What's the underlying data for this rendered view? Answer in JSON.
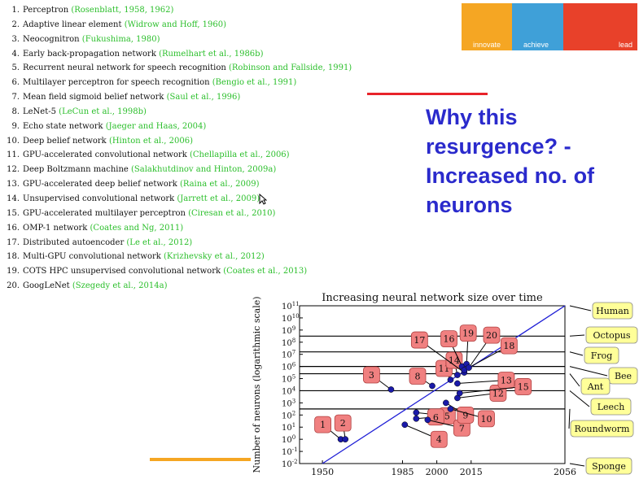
{
  "references": [
    {
      "num": "1.",
      "text": "Perceptron",
      "cite": "(Rosenblatt, 1958, 1962)"
    },
    {
      "num": "2.",
      "text": "Adaptive linear element",
      "cite": "(Widrow and Hoff, 1960)"
    },
    {
      "num": "3.",
      "text": "Neocognitron",
      "cite": "(Fukushima, 1980)"
    },
    {
      "num": "4.",
      "text": "Early back-propagation network",
      "cite": "(Rumelhart et al., 1986b)"
    },
    {
      "num": "5.",
      "text": "Recurrent neural network for speech recognition",
      "cite": "(Robinson and Fallside, 1991)"
    },
    {
      "num": "6.",
      "text": "Multilayer perceptron for speech recognition",
      "cite": "(Bengio et al., 1991)"
    },
    {
      "num": "7.",
      "text": "Mean field sigmoid belief network",
      "cite": "(Saul et al., 1996)"
    },
    {
      "num": "8.",
      "text": "LeNet-5",
      "cite": "(LeCun et al., 1998b)"
    },
    {
      "num": "9.",
      "text": "Echo state network",
      "cite": "(Jaeger and Haas, 2004)"
    },
    {
      "num": "10.",
      "text": "Deep belief network",
      "cite": "(Hinton et al., 2006)"
    },
    {
      "num": "11.",
      "text": "GPU-accelerated convolutional network",
      "cite": "(Chellapilla et al., 2006)"
    },
    {
      "num": "12.",
      "text": "Deep Boltzmann machine",
      "cite": "(Salakhutdinov and Hinton, 2009a)"
    },
    {
      "num": "13.",
      "text": "GPU-accelerated deep belief network",
      "cite": "(Raina et al., 2009)"
    },
    {
      "num": "14.",
      "text": "Unsupervised convolutional network",
      "cite": "(Jarrett et al., 2009)"
    },
    {
      "num": "15.",
      "text": "GPU-accelerated multilayer perceptron",
      "cite": "(Ciresan et al., 2010)"
    },
    {
      "num": "16.",
      "text": "OMP-1 network",
      "cite": "(Coates and Ng, 2011)"
    },
    {
      "num": "17.",
      "text": "Distributed autoencoder",
      "cite": "(Le et al., 2012)"
    },
    {
      "num": "18.",
      "text": "Multi-GPU convolutional network",
      "cite": "(Krizhevsky et al., 2012)"
    },
    {
      "num": "19.",
      "text": "COTS HPC unsupervised convolutional network",
      "cite": "(Coates et al., 2013)"
    },
    {
      "num": "20.",
      "text": "GoogLeNet",
      "cite": "(Szegedy et al., 2014a)"
    }
  ],
  "brand": [
    {
      "label": "innovate",
      "color": "#f5a623"
    },
    {
      "label": "achieve",
      "color": "#3fa0d8"
    },
    {
      "label": "lead",
      "color": "#e8412a"
    }
  ],
  "headline": "Why this resurgence? - Increased no. of neurons",
  "colors": {
    "accent_red": "#e8232a",
    "accent_orange": "#f5a623",
    "headline": "#2a2acc",
    "box_fill": "#f08080",
    "animal_fill": "#ffff99",
    "trend": "#1f1fd6",
    "dot": "#1a1aa8"
  },
  "chart_data": {
    "type": "scatter",
    "title": "Increasing neural network size over time",
    "ylabel": "Number of neurons (logarithmic scale)",
    "xlabel": "",
    "x_ticks": [
      1950,
      1985,
      2000,
      2015,
      2056
    ],
    "y_scale": "log",
    "y_tick_labels": [
      "10^11",
      "10^10",
      "10^9",
      "10^8",
      "10^7",
      "10^6",
      "10^5",
      "10^4",
      "10^3",
      "10^2",
      "10^1",
      "10^0",
      "10^-1",
      "10^-2"
    ],
    "xlim": [
      1940,
      2056
    ],
    "ylim_log10": [
      -2,
      11
    ],
    "points": [
      {
        "label": "1",
        "year": 1958,
        "log_neurons": 0.0
      },
      {
        "label": "2",
        "year": 1960,
        "log_neurons": 0.0
      },
      {
        "label": "3",
        "year": 1980,
        "log_neurons": 4.1
      },
      {
        "label": "4",
        "year": 1986,
        "log_neurons": 1.2
      },
      {
        "label": "5",
        "year": 1991,
        "log_neurons": 2.2
      },
      {
        "label": "6",
        "year": 1991,
        "log_neurons": 1.7
      },
      {
        "label": "7",
        "year": 1996,
        "log_neurons": 1.6
      },
      {
        "label": "8",
        "year": 1998,
        "log_neurons": 4.4
      },
      {
        "label": "9",
        "year": 2004,
        "log_neurons": 3.0
      },
      {
        "label": "10",
        "year": 2006,
        "log_neurons": 2.5
      },
      {
        "label": "11",
        "year": 2006,
        "log_neurons": 4.9
      },
      {
        "label": "12",
        "year": 2009,
        "log_neurons": 3.4
      },
      {
        "label": "13",
        "year": 2009,
        "log_neurons": 4.6
      },
      {
        "label": "14",
        "year": 2009,
        "log_neurons": 5.3
      },
      {
        "label": "15",
        "year": 2010,
        "log_neurons": 3.8
      },
      {
        "label": "16",
        "year": 2011,
        "log_neurons": 6.0
      },
      {
        "label": "17",
        "year": 2012,
        "log_neurons": 5.5
      },
      {
        "label": "18",
        "year": 2012,
        "log_neurons": 5.7
      },
      {
        "label": "19",
        "year": 2013,
        "log_neurons": 6.2
      },
      {
        "label": "20",
        "year": 2014,
        "log_neurons": 5.9
      }
    ],
    "trend_line": {
      "from": {
        "year": 1950,
        "log_neurons": -2
      },
      "to": {
        "year": 2056,
        "log_neurons": 11
      }
    },
    "reference_levels": [
      {
        "name": "Human",
        "log_neurons": 11
      },
      {
        "name": "Octopus",
        "log_neurons": 8.5
      },
      {
        "name": "Frog",
        "log_neurons": 7.2
      },
      {
        "name": "Bee",
        "log_neurons": 6.0
      },
      {
        "name": "Ant",
        "log_neurons": 5.4
      },
      {
        "name": "Leech",
        "log_neurons": 4.0
      },
      {
        "name": "Roundworm",
        "log_neurons": 2.5
      },
      {
        "name": "Sponge",
        "log_neurons": -2
      }
    ]
  }
}
